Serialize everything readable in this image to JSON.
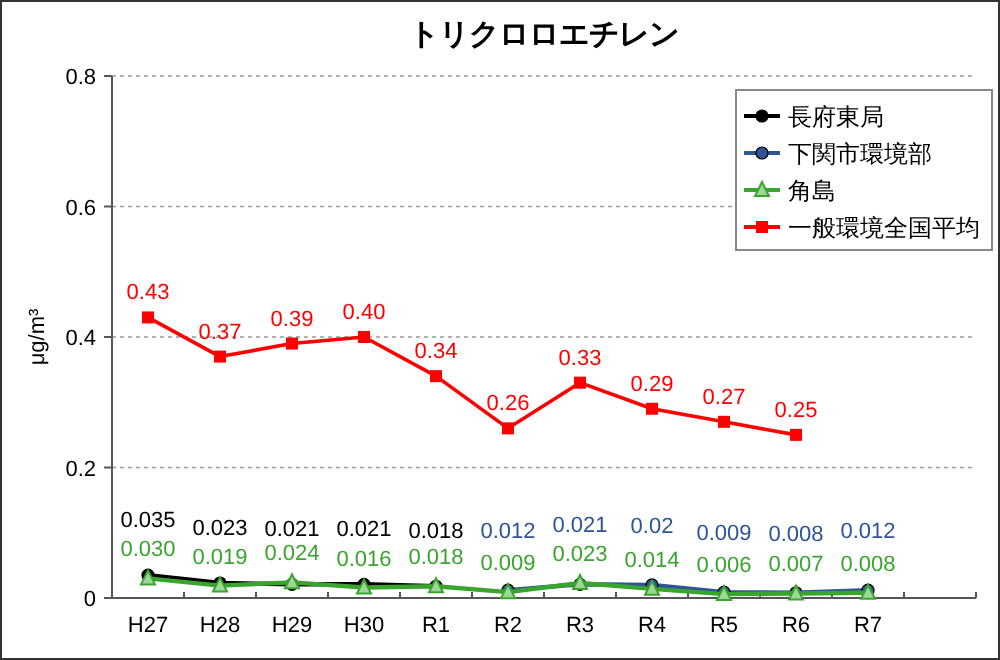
{
  "chart_data": {
    "type": "line",
    "title": "トリクロロエチレン",
    "ylabel": "μg/m³",
    "categories": [
      "H27",
      "H28",
      "H29",
      "H30",
      "R1",
      "R2",
      "R3",
      "R4",
      "R5",
      "R6",
      "R7"
    ],
    "series": [
      {
        "name": "長府東局",
        "color": "#000000",
        "marker": "circle",
        "values": [
          0.035,
          0.023,
          0.021,
          0.021,
          0.018,
          null,
          null,
          null,
          null,
          null,
          null
        ],
        "value_labels": [
          "0.035",
          "0.023",
          "0.021",
          "0.021",
          "0.018",
          null,
          null,
          null,
          null,
          null,
          null
        ]
      },
      {
        "name": "下関市環境部",
        "color": "#2f5597",
        "marker": "circle",
        "values": [
          null,
          null,
          null,
          null,
          null,
          0.012,
          0.021,
          0.02,
          0.009,
          0.008,
          0.012
        ],
        "value_labels": [
          null,
          null,
          null,
          null,
          null,
          "0.012",
          "0.021",
          "0.02",
          "0.009",
          "0.008",
          "0.012"
        ]
      },
      {
        "name": "角島",
        "color": "#3aa52e",
        "marker": "triangle",
        "values": [
          0.03,
          0.019,
          0.024,
          0.016,
          0.018,
          0.009,
          0.023,
          0.014,
          0.006,
          0.007,
          0.008
        ],
        "value_labels": [
          "0.030",
          "0.019",
          "0.024",
          "0.016",
          "0.018",
          "0.009",
          "0.023",
          "0.014",
          "0.006",
          "0.007",
          "0.008"
        ]
      },
      {
        "name": "一般環境全国平均",
        "color": "#ff0000",
        "marker": "square",
        "values": [
          0.43,
          0.37,
          0.39,
          0.4,
          0.34,
          0.26,
          0.33,
          0.29,
          0.27,
          0.25,
          null
        ],
        "value_labels": [
          "0.43",
          "0.37",
          "0.39",
          "0.40",
          "0.34",
          "0.26",
          "0.33",
          "0.29",
          "0.27",
          "0.25",
          null
        ]
      }
    ],
    "ylim": [
      0,
      0.8
    ],
    "yticks": [
      0,
      0.2,
      0.4,
      0.6,
      0.8
    ],
    "grid": "y",
    "legend": "top right"
  }
}
